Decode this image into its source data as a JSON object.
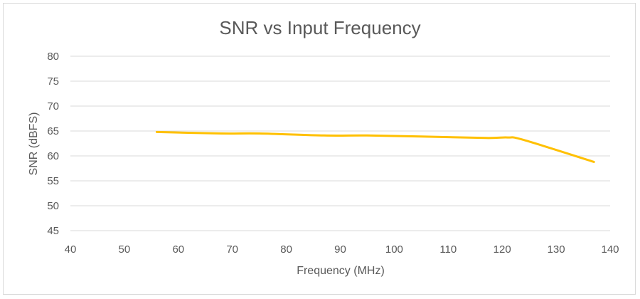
{
  "chart_data": {
    "type": "line",
    "title": "SNR vs Input Frequency",
    "xlabel": "Frequency (MHz)",
    "ylabel": "SNR (dBFS)",
    "xlim": [
      40,
      140
    ],
    "ylim": [
      45,
      80
    ],
    "x_ticks": [
      40,
      50,
      60,
      70,
      80,
      90,
      100,
      110,
      120,
      130,
      140
    ],
    "y_ticks": [
      45,
      50,
      55,
      60,
      65,
      70,
      75,
      80
    ],
    "grid": true,
    "series": [
      {
        "color": "#ffc000",
        "x": [
          56,
          68,
          75,
          87,
          95,
          105,
          117,
          121,
          124,
          137
        ],
        "y": [
          64.8,
          64.5,
          64.5,
          64.1,
          64.1,
          63.9,
          63.6,
          63.7,
          63.2,
          58.8
        ]
      }
    ]
  }
}
